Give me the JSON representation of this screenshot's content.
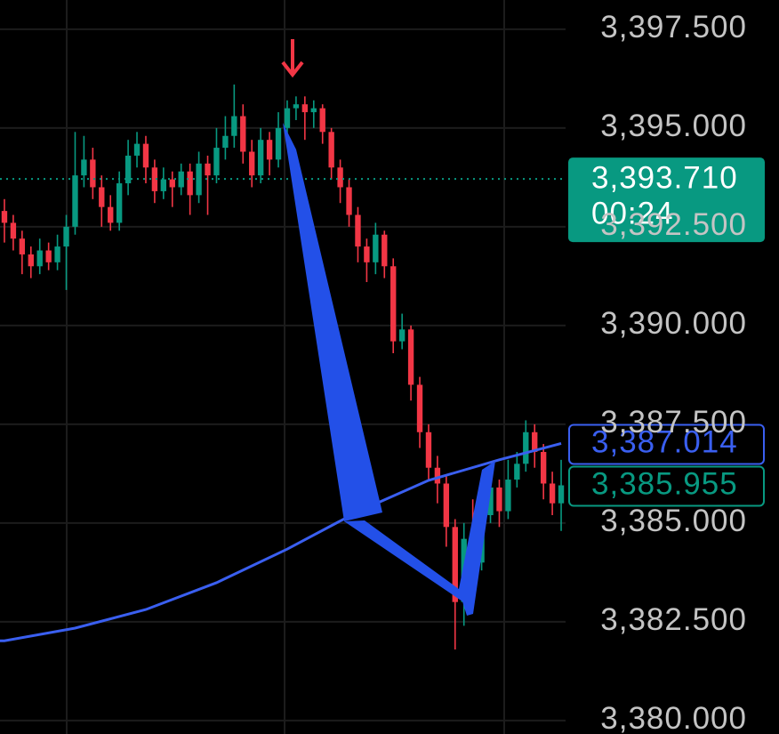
{
  "chart_data": {
    "type": "candlestick",
    "up_color": "#089981",
    "down_color": "#f23645",
    "ylim": [
      3379.66,
      3398.24
    ],
    "yticks": [
      {
        "value": 3397.5,
        "label": "3,397.500"
      },
      {
        "value": 3395,
        "label": "3,395.000"
      },
      {
        "value": 3392.5,
        "label": "3,392.500"
      },
      {
        "value": 3390,
        "label": "3,390.000"
      },
      {
        "value": 3387.5,
        "label": "3,387.500"
      },
      {
        "value": 3385,
        "label": "3,385.000"
      },
      {
        "value": 3382.5,
        "label": "3,382.500"
      },
      {
        "value": 3380,
        "label": "3,380.000"
      }
    ],
    "grid": true,
    "open": [
      3392.9,
      3392.6,
      3392.2,
      3391.8,
      3391.5,
      3391.9,
      3391.6,
      3392.0,
      3392.5,
      3393.8,
      3394.2,
      3393.5,
      3393.0,
      3392.6,
      3393.6,
      3394.3,
      3394.6,
      3394.0,
      3393.4,
      3393.7,
      3393.5,
      3393.9,
      3393.3,
      3394.1,
      3393.8,
      3394.5,
      3394.8,
      3395.3,
      3394.4,
      3393.8,
      3394.7,
      3394.2,
      3395.0,
      3395.5,
      3395.6,
      3395.4,
      3395.5,
      3394.9,
      3394.0,
      3393.5,
      3392.8,
      3392.0,
      3391.6,
      3392.3,
      3391.5,
      3389.6,
      3389.9,
      3388.5,
      3387.3,
      3386.4,
      3386.0,
      3384.9,
      3383.0,
      3384.6,
      3384.0,
      3385.2,
      3385.9,
      3385.3,
      3386.1,
      3386.5,
      3387.3,
      3386.8,
      3386.0,
      3385.5
    ],
    "high": [
      3393.2,
      3392.8,
      3392.4,
      3392.0,
      3392.2,
      3392.1,
      3392.3,
      3392.8,
      3394.9,
      3394.8,
      3394.5,
      3393.8,
      3393.3,
      3393.9,
      3394.7,
      3394.9,
      3394.8,
      3394.2,
      3394.0,
      3393.9,
      3394.1,
      3394.1,
      3394.4,
      3394.3,
      3395.0,
      3395.3,
      3396.1,
      3395.6,
      3394.7,
      3395.0,
      3394.9,
      3395.4,
      3395.7,
      3395.8,
      3395.8,
      3395.7,
      3395.6,
      3395.0,
      3394.2,
      3393.7,
      3393.0,
      3392.2,
      3392.6,
      3392.4,
      3391.7,
      3390.3,
      3390.0,
      3388.7,
      3387.5,
      3386.7,
      3386.2,
      3385.1,
      3385.0,
      3385.6,
      3385.5,
      3386.4,
      3386.1,
      3386.6,
      3386.8,
      3387.6,
      3387.5,
      3387.0,
      3386.3,
      3386.6
    ],
    "low": [
      3392.1,
      3391.9,
      3391.3,
      3391.2,
      3391.3,
      3391.4,
      3391.4,
      3390.9,
      3392.3,
      3393.5,
      3393.2,
      3392.5,
      3392.4,
      3392.4,
      3393.3,
      3394.0,
      3393.6,
      3393.1,
      3393.2,
      3393.0,
      3393.3,
      3392.8,
      3393.1,
      3392.8,
      3393.6,
      3394.2,
      3394.5,
      3394.1,
      3393.5,
      3393.6,
      3393.8,
      3394.0,
      3394.8,
      3395.2,
      3394.7,
      3395.0,
      3394.6,
      3393.7,
      3393.1,
      3392.5,
      3391.6,
      3391.1,
      3391.3,
      3391.2,
      3389.3,
      3389.4,
      3388.1,
      3386.9,
      3386.1,
      3385.5,
      3384.4,
      3381.8,
      3382.4,
      3383.5,
      3383.8,
      3385.0,
      3384.9,
      3385.1,
      3385.9,
      3386.3,
      3386.4,
      3385.6,
      3385.2,
      3384.8
    ],
    "close": [
      3392.6,
      3392.2,
      3391.8,
      3391.5,
      3391.9,
      3391.6,
      3392.0,
      3392.5,
      3393.8,
      3394.2,
      3393.5,
      3393.0,
      3392.6,
      3393.6,
      3394.3,
      3394.6,
      3394.0,
      3393.4,
      3393.7,
      3393.5,
      3393.9,
      3393.3,
      3394.1,
      3393.8,
      3394.5,
      3394.8,
      3395.3,
      3394.4,
      3393.8,
      3394.7,
      3394.2,
      3395.0,
      3395.5,
      3395.6,
      3395.4,
      3395.5,
      3394.9,
      3394.0,
      3393.5,
      3392.8,
      3392.0,
      3391.6,
      3392.3,
      3391.5,
      3389.6,
      3389.9,
      3388.5,
      3387.3,
      3386.4,
      3386.0,
      3384.9,
      3383.0,
      3384.6,
      3384.0,
      3385.2,
      3385.9,
      3385.3,
      3386.1,
      3386.5,
      3387.3,
      3386.8,
      3386.0,
      3385.5,
      3385.955
    ],
    "moving_average": {
      "color": "#3a5ff0",
      "x": [
        0,
        8,
        16,
        24,
        32,
        40,
        48,
        56,
        63
      ],
      "values": [
        3382.02,
        3382.34,
        3382.81,
        3383.49,
        3384.34,
        3385.29,
        3386.08,
        3386.6,
        3387.014
      ]
    },
    "price_tags": [
      {
        "value": 3393.71,
        "label": "3,393.710",
        "countdown": "00:24",
        "color": "#089981",
        "filled": true
      },
      {
        "value": 3387.014,
        "label": "3,387.014",
        "color": "#3a5ff0",
        "filled": false
      },
      {
        "value": 3385.955,
        "label": "3,385.955",
        "color": "#089981",
        "filled": false
      }
    ]
  }
}
